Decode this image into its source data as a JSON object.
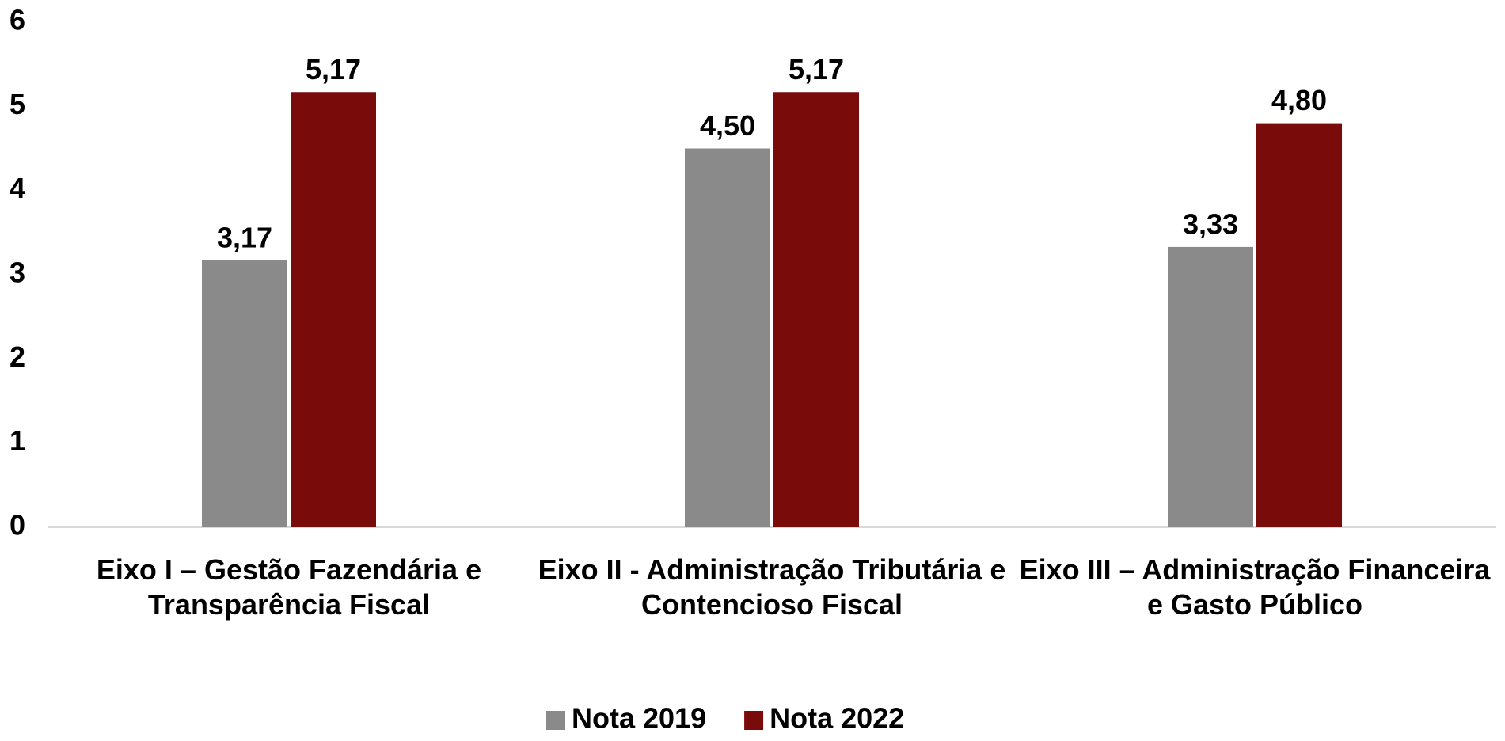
{
  "chart_data": {
    "type": "bar",
    "categories": [
      "Eixo I – Gestão Fazendária e Transparência Fiscal",
      "Eixo II - Administração Tributária e Contencioso Fiscal",
      "Eixo III – Administração Financeira e Gasto Público"
    ],
    "series": [
      {
        "name": "Nota 2019",
        "color": "#8a8a8a",
        "values": [
          3.17,
          4.5,
          3.33
        ],
        "value_labels": [
          "3,17",
          "4,50",
          "3,33"
        ]
      },
      {
        "name": "Nota 2022",
        "color": "#7a0b0b",
        "values": [
          5.17,
          5.17,
          4.8
        ],
        "value_labels": [
          "5,17",
          "5,17",
          "4,80"
        ]
      }
    ],
    "ylim": [
      0,
      6
    ],
    "yticks": [
      0,
      1,
      2,
      3,
      4,
      5,
      6
    ],
    "grid": false,
    "legend": "bottom"
  }
}
